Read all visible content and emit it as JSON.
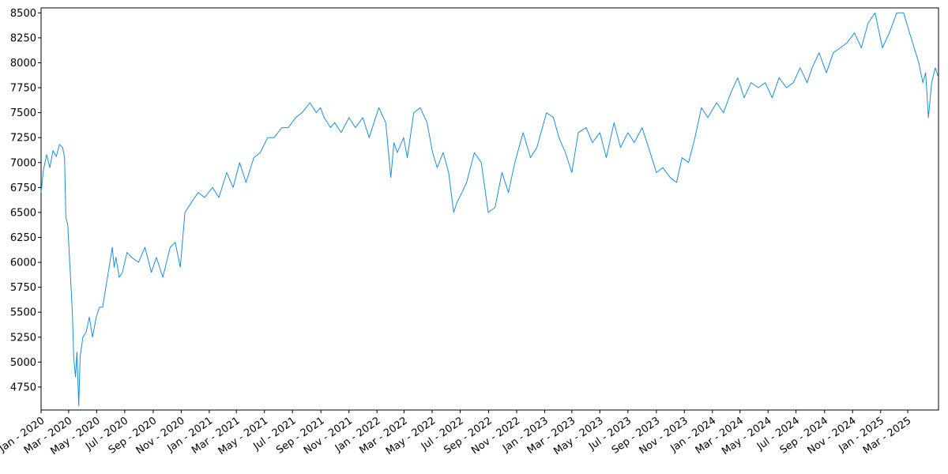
{
  "chart_data": {
    "type": "line",
    "title": "",
    "xlabel": "",
    "ylabel": "",
    "x_range": [
      "2020-01-01",
      "2025-05-07"
    ],
    "ylim": [
      4520,
      8550
    ],
    "grid": false,
    "legend": "none",
    "line_color": "#1a8fd6",
    "y_ticks": [
      4750,
      5000,
      5250,
      5500,
      5750,
      6000,
      6250,
      6500,
      6750,
      7000,
      7250,
      7500,
      7750,
      8000,
      8250,
      8500
    ],
    "x_ticks": [
      {
        "date": "2020-01-01",
        "label": "Jan - 2020"
      },
      {
        "date": "2020-03-01",
        "label": "Mar - 2020"
      },
      {
        "date": "2020-05-01",
        "label": "May - 2020"
      },
      {
        "date": "2020-07-01",
        "label": "Jul - 2020"
      },
      {
        "date": "2020-09-01",
        "label": "Sep - 2020"
      },
      {
        "date": "2020-11-01",
        "label": "Nov - 2020"
      },
      {
        "date": "2021-01-01",
        "label": "Jan - 2021"
      },
      {
        "date": "2021-03-01",
        "label": "Mar - 2021"
      },
      {
        "date": "2021-05-01",
        "label": "May - 2021"
      },
      {
        "date": "2021-07-01",
        "label": "Jul - 2021"
      },
      {
        "date": "2021-09-01",
        "label": "Sep - 2021"
      },
      {
        "date": "2021-11-01",
        "label": "Nov - 2021"
      },
      {
        "date": "2022-01-01",
        "label": "Jan - 2022"
      },
      {
        "date": "2022-03-01",
        "label": "Mar - 2022"
      },
      {
        "date": "2022-05-01",
        "label": "May - 2022"
      },
      {
        "date": "2022-07-01",
        "label": "Jul - 2022"
      },
      {
        "date": "2022-09-01",
        "label": "Sep - 2022"
      },
      {
        "date": "2022-11-01",
        "label": "Nov - 2022"
      },
      {
        "date": "2023-01-01",
        "label": "Jan - 2023"
      },
      {
        "date": "2023-03-01",
        "label": "Mar - 2023"
      },
      {
        "date": "2023-05-01",
        "label": "May - 2023"
      },
      {
        "date": "2023-07-01",
        "label": "Jul - 2023"
      },
      {
        "date": "2023-09-01",
        "label": "Sep - 2023"
      },
      {
        "date": "2023-11-01",
        "label": "Nov - 2023"
      },
      {
        "date": "2024-01-01",
        "label": "Jan - 2024"
      },
      {
        "date": "2024-03-01",
        "label": "Mar - 2024"
      },
      {
        "date": "2024-05-01",
        "label": "May - 2024"
      },
      {
        "date": "2024-07-01",
        "label": "Jul - 2024"
      },
      {
        "date": "2024-09-01",
        "label": "Sep - 2024"
      },
      {
        "date": "2024-11-01",
        "label": "Nov - 2024"
      },
      {
        "date": "2025-01-01",
        "label": "Jan - 2025"
      },
      {
        "date": "2025-03-01",
        "label": "Mar - 2025"
      }
    ],
    "series": [
      {
        "x": [
          "2020-01-01",
          "2020-01-06",
          "2020-01-13",
          "2020-01-20",
          "2020-01-27",
          "2020-02-03",
          "2020-02-10",
          "2020-02-17",
          "2020-02-21",
          "2020-02-24",
          "2020-02-28",
          "2020-03-04",
          "2020-03-09",
          "2020-03-12",
          "2020-03-16",
          "2020-03-19",
          "2020-03-23",
          "2020-03-26",
          "2020-04-01",
          "2020-04-08",
          "2020-04-15",
          "2020-04-22",
          "2020-04-30",
          "2020-05-07",
          "2020-05-14",
          "2020-05-21",
          "2020-05-28",
          "2020-06-04",
          "2020-06-08",
          "2020-06-12",
          "2020-06-19",
          "2020-06-26",
          "2020-07-06",
          "2020-07-16",
          "2020-07-31",
          "2020-08-14",
          "2020-08-28",
          "2020-09-08",
          "2020-09-22",
          "2020-10-08",
          "2020-10-19",
          "2020-10-30",
          "2020-11-09",
          "2020-11-23",
          "2020-12-08",
          "2020-12-22",
          "2021-01-08",
          "2021-01-22",
          "2021-02-08",
          "2021-02-22",
          "2021-03-08",
          "2021-03-22",
          "2021-04-08",
          "2021-04-22",
          "2021-05-08",
          "2021-05-22",
          "2021-06-08",
          "2021-06-22",
          "2021-07-08",
          "2021-07-22",
          "2021-08-08",
          "2021-08-22",
          "2021-08-31",
          "2021-09-08",
          "2021-09-22",
          "2021-10-01",
          "2021-10-15",
          "2021-11-01",
          "2021-11-15",
          "2021-12-01",
          "2021-12-15",
          "2022-01-05",
          "2022-01-20",
          "2022-01-31",
          "2022-02-07",
          "2022-02-14",
          "2022-02-28",
          "2022-03-08",
          "2022-03-22",
          "2022-04-05",
          "2022-04-20",
          "2022-05-02",
          "2022-05-12",
          "2022-05-25",
          "2022-06-06",
          "2022-06-17",
          "2022-06-24",
          "2022-07-05",
          "2022-07-15",
          "2022-08-01",
          "2022-08-16",
          "2022-08-31",
          "2022-09-15",
          "2022-09-30",
          "2022-10-14",
          "2022-10-28",
          "2022-11-15",
          "2022-12-01",
          "2022-12-15",
          "2023-01-05",
          "2023-01-20",
          "2023-02-01",
          "2023-02-15",
          "2023-03-01",
          "2023-03-15",
          "2023-04-01",
          "2023-04-15",
          "2023-05-01",
          "2023-05-15",
          "2023-06-01",
          "2023-06-15",
          "2023-07-01",
          "2023-07-15",
          "2023-08-01",
          "2023-08-15",
          "2023-09-01",
          "2023-09-15",
          "2023-10-01",
          "2023-10-15",
          "2023-10-27",
          "2023-11-10",
          "2023-11-24",
          "2023-12-08",
          "2023-12-22",
          "2024-01-10",
          "2024-01-25",
          "2024-02-10",
          "2024-02-25",
          "2024-03-10",
          "2024-03-25",
          "2024-04-10",
          "2024-04-25",
          "2024-05-10",
          "2024-05-25",
          "2024-06-10",
          "2024-06-25",
          "2024-07-10",
          "2024-07-25",
          "2024-08-05",
          "2024-08-20",
          "2024-09-05",
          "2024-09-20",
          "2024-10-05",
          "2024-10-20",
          "2024-11-05",
          "2024-11-20",
          "2024-12-05",
          "2024-12-20",
          "2025-01-05",
          "2025-01-20",
          "2025-02-05",
          "2025-02-20",
          "2025-03-05",
          "2025-03-15",
          "2025-03-25",
          "2025-04-03",
          "2025-04-09",
          "2025-04-15",
          "2025-04-22",
          "2025-04-30",
          "2025-05-07"
        ],
        "values": [
          6700,
          6920,
          7080,
          6950,
          7120,
          7060,
          7180,
          7150,
          7050,
          6450,
          6380,
          5950,
          5500,
          5050,
          4850,
          5100,
          4560,
          5050,
          5250,
          5300,
          5450,
          5250,
          5450,
          5550,
          5550,
          5750,
          5950,
          6150,
          5950,
          6050,
          5850,
          5900,
          6100,
          6050,
          6000,
          6150,
          5900,
          6050,
          5850,
          6150,
          6200,
          5950,
          6500,
          6600,
          6700,
          6650,
          6750,
          6650,
          6900,
          6750,
          7000,
          6800,
          7050,
          7100,
          7250,
          7250,
          7350,
          7350,
          7450,
          7500,
          7600,
          7500,
          7550,
          7450,
          7350,
          7400,
          7300,
          7450,
          7350,
          7450,
          7250,
          7550,
          7400,
          6850,
          7200,
          7100,
          7250,
          7050,
          7500,
          7550,
          7400,
          7100,
          6950,
          7100,
          6900,
          6500,
          6600,
          6700,
          6800,
          7100,
          7000,
          6500,
          6550,
          6900,
          6700,
          7000,
          7300,
          7050,
          7150,
          7500,
          7450,
          7250,
          7100,
          6900,
          7300,
          7350,
          7200,
          7300,
          7050,
          7400,
          7150,
          7300,
          7200,
          7350,
          7150,
          6900,
          6950,
          6850,
          6800,
          7050,
          7000,
          7250,
          7550,
          7450,
          7600,
          7500,
          7700,
          7850,
          7650,
          7800,
          7750,
          7800,
          7650,
          7850,
          7750,
          7800,
          7950,
          7800,
          7950,
          8100,
          7900,
          8100,
          8150,
          8200,
          8300,
          8150,
          8400,
          8500,
          8150,
          8300,
          8500,
          8500,
          8300,
          8150,
          8000,
          7800,
          7900,
          7450,
          7800,
          7950,
          7850
        ]
      }
    ]
  }
}
